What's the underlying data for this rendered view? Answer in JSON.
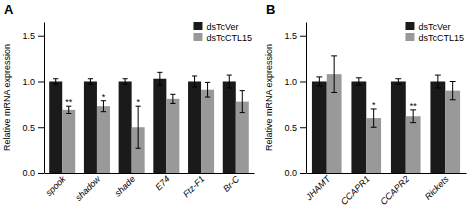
{
  "chart_data": [
    {
      "type": "bar",
      "title": "A",
      "ylabel": "Relative mRNA expression",
      "categories": [
        "spook",
        "shadow",
        "shade",
        "E74",
        "Ftz-F1",
        "Br-C"
      ],
      "series": [
        {
          "name": "dsTcVer",
          "color": "#1a1a1a",
          "values": [
            1.0,
            1.0,
            1.0,
            1.03,
            1.0,
            1.0
          ],
          "errors": [
            0.03,
            0.03,
            0.03,
            0.07,
            0.06,
            0.07
          ]
        },
        {
          "name": "dsTcCTL15",
          "color": "#999999",
          "values": [
            0.69,
            0.73,
            0.5,
            0.81,
            0.91,
            0.78
          ],
          "errors": [
            0.04,
            0.06,
            0.23,
            0.05,
            0.08,
            0.12
          ]
        }
      ],
      "annotations": [
        {
          "text": "**",
          "category": "spook",
          "series": "dsTcCTL15",
          "y": 0.73
        },
        {
          "text": "*",
          "category": "shadow",
          "series": "dsTcCTL15",
          "y": 0.79
        },
        {
          "text": "*",
          "category": "shade",
          "series": "dsTcCTL15",
          "y": 0.73
        }
      ],
      "ylim": [
        0.0,
        1.65
      ],
      "yticks": [
        {
          "value": 0.0,
          "label": "0.0"
        },
        0.5,
        {
          "value": 1.0,
          "label": "1.0"
        },
        1.5
      ],
      "legend": "upper right"
    },
    {
      "type": "bar",
      "title": "B",
      "ylabel": "Relative mRNA expression",
      "categories": [
        "JHAMT",
        "CCAPR1",
        "CCAPR2",
        "Rickets"
      ],
      "series": [
        {
          "name": "dsTcVer",
          "color": "#1a1a1a",
          "values": [
            1.0,
            1.0,
            1.0,
            1.0
          ],
          "errors": [
            0.05,
            0.04,
            0.03,
            0.07
          ]
        },
        {
          "name": "dsTcCTL15",
          "color": "#999999",
          "values": [
            1.08,
            0.6,
            0.62,
            0.9
          ],
          "errors": [
            0.2,
            0.1,
            0.07,
            0.1
          ]
        }
      ],
      "annotations": [
        {
          "text": "*",
          "category": "CCAPR1",
          "series": "dsTcCTL15",
          "y": 0.7
        },
        {
          "text": "**",
          "category": "CCAPR2",
          "series": "dsTcCTL15",
          "y": 0.69
        }
      ],
      "ylim": [
        0.0,
        1.65
      ],
      "yticks": [
        {
          "value": 0.0,
          "label": "0.0"
        },
        0.5,
        {
          "value": 1.0,
          "label": "1.0"
        },
        1.5
      ],
      "legend": "upper right"
    }
  ]
}
